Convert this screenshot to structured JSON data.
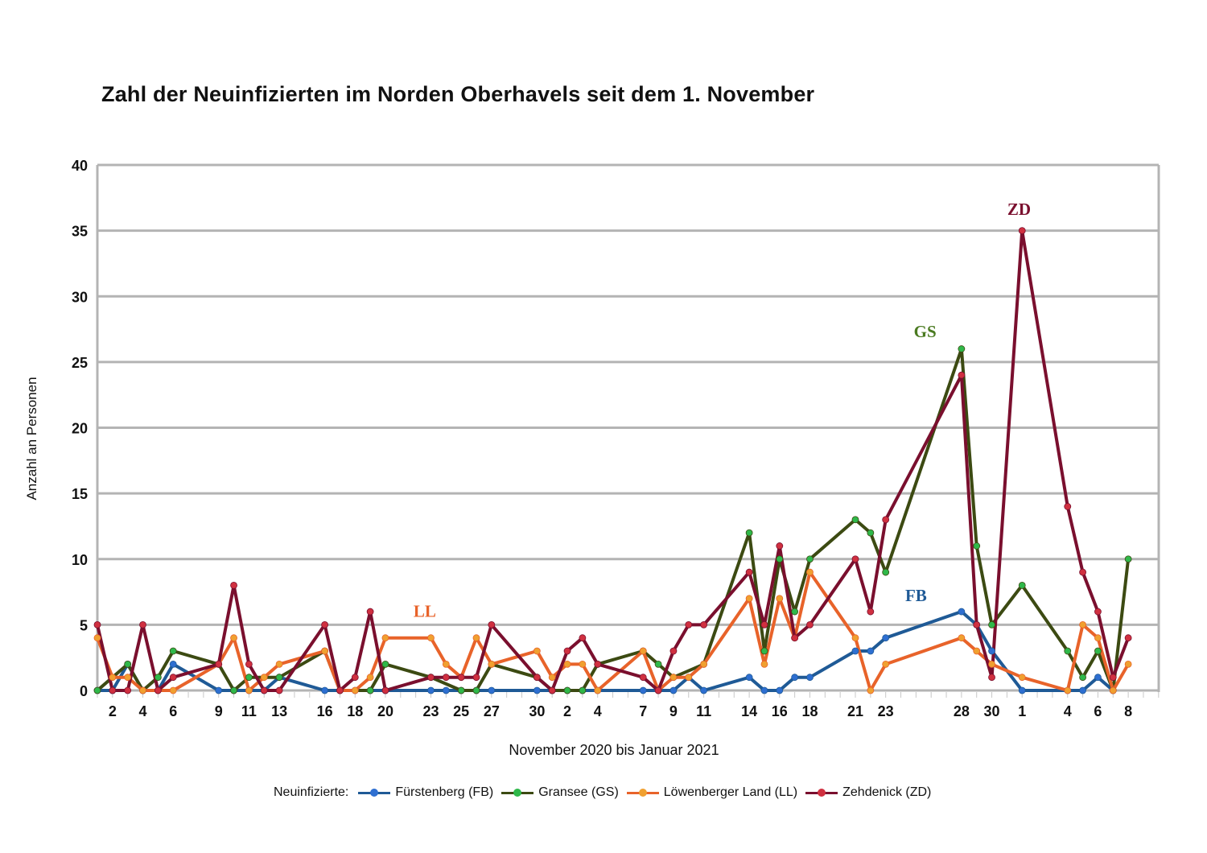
{
  "chart_data": {
    "type": "line",
    "title": "Zahl der Neuinfizierten im Norden Oberhavels seit dem 1. November",
    "xlabel": "November 2020 bis Januar 2021",
    "ylabel": "Anzahl an Personen",
    "ylim": [
      0,
      40
    ],
    "yticks": [
      0,
      5,
      10,
      15,
      20,
      25,
      30,
      35,
      40
    ],
    "grid": true,
    "legend_position": "bottom",
    "legend_title": "Neuinfizierte:",
    "x_day_index_note": "0 = 1. November 2020",
    "xticks": [
      {
        "day": 1,
        "label": "2"
      },
      {
        "day": 3,
        "label": "4"
      },
      {
        "day": 5,
        "label": "6"
      },
      {
        "day": 8,
        "label": "9"
      },
      {
        "day": 10,
        "label": "11"
      },
      {
        "day": 12,
        "label": "13"
      },
      {
        "day": 15,
        "label": "16"
      },
      {
        "day": 17,
        "label": "18"
      },
      {
        "day": 19,
        "label": "20"
      },
      {
        "day": 22,
        "label": "23"
      },
      {
        "day": 24,
        "label": "25"
      },
      {
        "day": 26,
        "label": "27"
      },
      {
        "day": 29,
        "label": "30"
      },
      {
        "day": 31,
        "label": "2"
      },
      {
        "day": 33,
        "label": "4"
      },
      {
        "day": 36,
        "label": "7"
      },
      {
        "day": 38,
        "label": "9"
      },
      {
        "day": 40,
        "label": "11"
      },
      {
        "day": 43,
        "label": "14"
      },
      {
        "day": 45,
        "label": "16"
      },
      {
        "day": 47,
        "label": "18"
      },
      {
        "day": 50,
        "label": "21"
      },
      {
        "day": 52,
        "label": "23"
      },
      {
        "day": 57,
        "label": "28"
      },
      {
        "day": 59,
        "label": "30"
      },
      {
        "day": 61,
        "label": "1"
      },
      {
        "day": 64,
        "label": "4"
      },
      {
        "day": 66,
        "label": "6"
      },
      {
        "day": 68,
        "label": "8"
      }
    ],
    "series": [
      {
        "name": "Fürstenberg (FB)",
        "short": "FB",
        "color": "#1f5a96",
        "marker": "#2e6fd1",
        "points": [
          [
            0,
            0
          ],
          [
            1,
            0
          ],
          [
            2,
            2
          ],
          [
            3,
            0
          ],
          [
            4,
            0
          ],
          [
            5,
            2
          ],
          [
            8,
            0
          ],
          [
            9,
            0
          ],
          [
            10,
            0
          ],
          [
            11,
            0
          ],
          [
            12,
            1
          ],
          [
            15,
            0
          ],
          [
            16,
            0
          ],
          [
            17,
            0
          ],
          [
            18,
            0
          ],
          [
            19,
            0
          ],
          [
            22,
            0
          ],
          [
            23,
            0
          ],
          [
            24,
            0
          ],
          [
            25,
            0
          ],
          [
            26,
            0
          ],
          [
            29,
            0
          ],
          [
            30,
            0
          ],
          [
            31,
            0
          ],
          [
            32,
            0
          ],
          [
            33,
            0
          ],
          [
            36,
            0
          ],
          [
            37,
            0
          ],
          [
            38,
            0
          ],
          [
            39,
            1
          ],
          [
            40,
            0
          ],
          [
            43,
            1
          ],
          [
            44,
            0
          ],
          [
            45,
            0
          ],
          [
            46,
            1
          ],
          [
            47,
            1
          ],
          [
            50,
            3
          ],
          [
            51,
            3
          ],
          [
            52,
            4
          ],
          [
            57,
            6
          ],
          [
            58,
            5
          ],
          [
            59,
            3
          ],
          [
            61,
            0
          ],
          [
            64,
            0
          ],
          [
            65,
            0
          ],
          [
            66,
            1
          ],
          [
            67,
            0
          ]
        ]
      },
      {
        "name": "Gransee (GS)",
        "short": "GS",
        "color": "#3c4a12",
        "marker": "#2fb84a",
        "points": [
          [
            0,
            0
          ],
          [
            2,
            2
          ],
          [
            3,
            0
          ],
          [
            4,
            1
          ],
          [
            5,
            3
          ],
          [
            8,
            2
          ],
          [
            9,
            0
          ],
          [
            10,
            1
          ],
          [
            12,
            1
          ],
          [
            15,
            3
          ],
          [
            16,
            0
          ],
          [
            18,
            0
          ],
          [
            19,
            2
          ],
          [
            22,
            1
          ],
          [
            24,
            0
          ],
          [
            25,
            0
          ],
          [
            26,
            2
          ],
          [
            29,
            1
          ],
          [
            30,
            0
          ],
          [
            31,
            0
          ],
          [
            32,
            0
          ],
          [
            33,
            2
          ],
          [
            36,
            3
          ],
          [
            37,
            2
          ],
          [
            38,
            1
          ],
          [
            40,
            2
          ],
          [
            43,
            12
          ],
          [
            44,
            3
          ],
          [
            45,
            10
          ],
          [
            46,
            6
          ],
          [
            47,
            10
          ],
          [
            50,
            13
          ],
          [
            51,
            12
          ],
          [
            52,
            9
          ],
          [
            57,
            26
          ],
          [
            58,
            11
          ],
          [
            59,
            5
          ],
          [
            61,
            8
          ],
          [
            64,
            3
          ],
          [
            65,
            1
          ],
          [
            66,
            3
          ],
          [
            67,
            0
          ],
          [
            68,
            10
          ]
        ]
      },
      {
        "name": "Löwenberger Land (LL)",
        "short": "LL",
        "color": "#e8632a",
        "marker": "#f0a030",
        "points": [
          [
            0,
            4
          ],
          [
            1,
            1
          ],
          [
            2,
            1
          ],
          [
            3,
            0
          ],
          [
            4,
            0
          ],
          [
            5,
            0
          ],
          [
            8,
            2
          ],
          [
            9,
            4
          ],
          [
            10,
            0
          ],
          [
            11,
            1
          ],
          [
            12,
            2
          ],
          [
            15,
            3
          ],
          [
            16,
            0
          ],
          [
            17,
            0
          ],
          [
            18,
            1
          ],
          [
            19,
            4
          ],
          [
            22,
            4
          ],
          [
            23,
            2
          ],
          [
            24,
            1
          ],
          [
            25,
            4
          ],
          [
            26,
            2
          ],
          [
            29,
            3
          ],
          [
            30,
            1
          ],
          [
            31,
            2
          ],
          [
            32,
            2
          ],
          [
            33,
            0
          ],
          [
            36,
            3
          ],
          [
            37,
            0
          ],
          [
            38,
            1
          ],
          [
            39,
            1
          ],
          [
            40,
            2
          ],
          [
            43,
            7
          ],
          [
            44,
            2
          ],
          [
            45,
            7
          ],
          [
            46,
            4
          ],
          [
            47,
            9
          ],
          [
            50,
            4
          ],
          [
            51,
            0
          ],
          [
            52,
            2
          ],
          [
            57,
            4
          ],
          [
            58,
            3
          ],
          [
            59,
            2
          ],
          [
            61,
            1
          ],
          [
            64,
            0
          ],
          [
            65,
            5
          ],
          [
            66,
            4
          ],
          [
            67,
            0
          ],
          [
            68,
            2
          ]
        ]
      },
      {
        "name": "Zehdenick (ZD)",
        "short": "ZD",
        "color": "#7a0f2e",
        "marker": "#d03040",
        "points": [
          [
            0,
            5
          ],
          [
            1,
            0
          ],
          [
            2,
            0
          ],
          [
            3,
            5
          ],
          [
            4,
            0
          ],
          [
            5,
            1
          ],
          [
            8,
            2
          ],
          [
            9,
            8
          ],
          [
            10,
            2
          ],
          [
            11,
            0
          ],
          [
            12,
            0
          ],
          [
            15,
            5
          ],
          [
            16,
            0
          ],
          [
            17,
            1
          ],
          [
            18,
            6
          ],
          [
            19,
            0
          ],
          [
            22,
            1
          ],
          [
            23,
            1
          ],
          [
            24,
            1
          ],
          [
            25,
            1
          ],
          [
            26,
            5
          ],
          [
            29,
            1
          ],
          [
            30,
            0
          ],
          [
            31,
            3
          ],
          [
            32,
            4
          ],
          [
            33,
            2
          ],
          [
            36,
            1
          ],
          [
            37,
            0
          ],
          [
            38,
            3
          ],
          [
            39,
            5
          ],
          [
            40,
            5
          ],
          [
            43,
            9
          ],
          [
            44,
            5
          ],
          [
            45,
            11
          ],
          [
            46,
            4
          ],
          [
            47,
            5
          ],
          [
            50,
            10
          ],
          [
            51,
            6
          ],
          [
            52,
            13
          ],
          [
            57,
            24
          ],
          [
            58,
            5
          ],
          [
            59,
            1
          ],
          [
            61,
            35
          ],
          [
            64,
            14
          ],
          [
            65,
            9
          ],
          [
            66,
            6
          ],
          [
            67,
            1
          ],
          [
            68,
            4
          ]
        ]
      }
    ],
    "annotations": [
      {
        "text": "ZD",
        "day": 60.8,
        "y": 36.2,
        "color": "#7a0f2e"
      },
      {
        "text": "GS",
        "day": 54.6,
        "y": 26.9,
        "color": "#4a7a20"
      },
      {
        "text": "FB",
        "day": 54.0,
        "y": 6.8,
        "color": "#1f5a96"
      },
      {
        "text": "LL",
        "day": 21.6,
        "y": 5.6,
        "color": "#e8632a"
      }
    ]
  }
}
